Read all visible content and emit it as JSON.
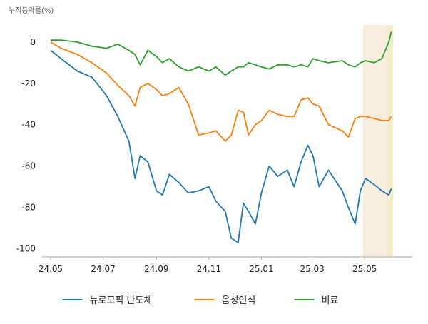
{
  "chart_data": {
    "type": "line",
    "y_unit_label": "누적등락률(%)",
    "ylim": [
      -104,
      10
    ],
    "yticks": [
      0,
      -20,
      -40,
      -60,
      -80,
      -100
    ],
    "xticks": [
      "24.05",
      "24.07",
      "24.09",
      "24.11",
      "25.01",
      "25.03",
      "25.05"
    ],
    "x_range": [
      "2024-05-01",
      "2025-06-03"
    ],
    "legend_position": "bottom",
    "grid": false,
    "highlight_bands": [
      {
        "start": "2025-04-29",
        "end": "2025-05-27",
        "color": "#f8eedf"
      },
      {
        "start": "2025-05-27",
        "end": "2025-06-03",
        "color": "#f3eccb"
      }
    ],
    "series": [
      {
        "name": "뉴로모픽 반도체",
        "color": "#1f77b4",
        "x": [
          "2024-05-01",
          "2024-05-13",
          "2024-06-01",
          "2024-06-18",
          "2024-07-05",
          "2024-07-18",
          "2024-07-31",
          "2024-08-07",
          "2024-08-13",
          "2024-08-22",
          "2024-09-01",
          "2024-09-08",
          "2024-09-16",
          "2024-09-27",
          "2024-10-08",
          "2024-10-20",
          "2024-11-01",
          "2024-11-09",
          "2024-11-20",
          "2024-11-27",
          "2024-12-05",
          "2024-12-11",
          "2024-12-17",
          "2024-12-25",
          "2025-01-01",
          "2025-01-10",
          "2025-01-20",
          "2025-01-31",
          "2025-02-08",
          "2025-02-16",
          "2025-02-24",
          "2025-03-02",
          "2025-03-09",
          "2025-03-20",
          "2025-04-05",
          "2025-04-12",
          "2025-04-20",
          "2025-04-26",
          "2025-05-02",
          "2025-05-12",
          "2025-05-21",
          "2025-05-29",
          "2025-06-01"
        ],
        "values": [
          -4,
          -8,
          -14,
          -17,
          -26,
          -36,
          -48,
          -66,
          -55,
          -58,
          -72,
          -74,
          -64,
          -68,
          -73,
          -72,
          -70,
          -77,
          -82,
          -95,
          -97,
          -78,
          -82,
          -88,
          -73,
          -60,
          -65,
          -62,
          -70,
          -58,
          -50,
          -55,
          -70,
          -62,
          -72,
          -80,
          -88,
          -72,
          -66,
          -69,
          -72,
          -74,
          -71
        ]
      },
      {
        "name": "음성인식",
        "color": "#ff7f0e",
        "x": [
          "2024-05-01",
          "2024-05-13",
          "2024-06-01",
          "2024-06-18",
          "2024-07-05",
          "2024-07-18",
          "2024-07-31",
          "2024-08-07",
          "2024-08-13",
          "2024-08-22",
          "2024-09-01",
          "2024-09-08",
          "2024-09-16",
          "2024-09-27",
          "2024-10-08",
          "2024-10-20",
          "2024-11-01",
          "2024-11-09",
          "2024-11-20",
          "2024-11-27",
          "2024-12-05",
          "2024-12-11",
          "2024-12-17",
          "2024-12-25",
          "2025-01-01",
          "2025-01-10",
          "2025-01-20",
          "2025-01-31",
          "2025-02-08",
          "2025-02-16",
          "2025-02-24",
          "2025-03-02",
          "2025-03-09",
          "2025-03-20",
          "2025-04-05",
          "2025-04-12",
          "2025-04-20",
          "2025-04-26",
          "2025-05-02",
          "2025-05-12",
          "2025-05-21",
          "2025-05-29",
          "2025-06-01"
        ],
        "values": [
          0,
          -3,
          -6,
          -10,
          -15,
          -21,
          -26,
          -31,
          -22,
          -20,
          -23,
          -26,
          -25,
          -22,
          -30,
          -45,
          -44,
          -43,
          -48,
          -45,
          -33,
          -34,
          -45,
          -40,
          -38,
          -33,
          -35,
          -36,
          -36,
          -28,
          -27,
          -30,
          -31,
          -40,
          -43,
          -46,
          -37,
          -36,
          -36,
          -37,
          -38,
          -38,
          -36
        ]
      },
      {
        "name": "비료",
        "color": "#2ca02c",
        "x": [
          "2024-05-01",
          "2024-05-13",
          "2024-06-01",
          "2024-06-18",
          "2024-07-05",
          "2024-07-18",
          "2024-07-31",
          "2024-08-07",
          "2024-08-13",
          "2024-08-22",
          "2024-09-01",
          "2024-09-08",
          "2024-09-16",
          "2024-09-27",
          "2024-10-08",
          "2024-10-20",
          "2024-11-01",
          "2024-11-09",
          "2024-11-20",
          "2024-11-27",
          "2024-12-05",
          "2024-12-11",
          "2024-12-17",
          "2024-12-25",
          "2025-01-01",
          "2025-01-10",
          "2025-01-20",
          "2025-01-31",
          "2025-02-08",
          "2025-02-16",
          "2025-02-24",
          "2025-03-02",
          "2025-03-09",
          "2025-03-20",
          "2025-04-05",
          "2025-04-12",
          "2025-04-20",
          "2025-04-26",
          "2025-05-02",
          "2025-05-12",
          "2025-05-21",
          "2025-05-29",
          "2025-06-01"
        ],
        "values": [
          1,
          1,
          0,
          -2,
          -3,
          -1,
          -4,
          -6,
          -11,
          -4,
          -7,
          -10,
          -8,
          -12,
          -14,
          -12,
          -14,
          -12,
          -16,
          -14,
          -12,
          -12,
          -10,
          -11,
          -12,
          -13,
          -11,
          -11,
          -12,
          -11,
          -12,
          -8,
          -9,
          -10,
          -9,
          -11,
          -12,
          -10,
          -9,
          -10,
          -8,
          0,
          5
        ]
      }
    ]
  }
}
